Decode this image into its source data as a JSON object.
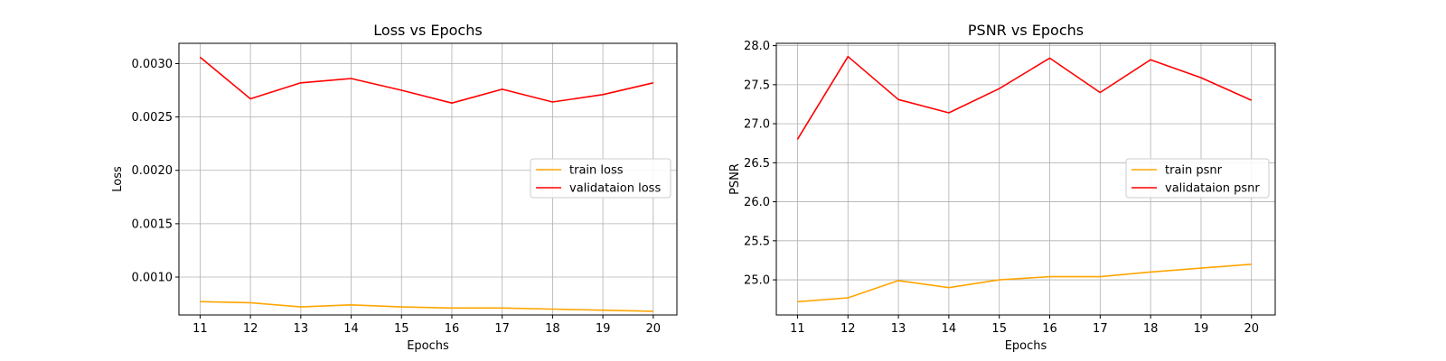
{
  "colors": {
    "train": "#ffa500",
    "validation": "#ff0000",
    "grid": "#b0b0b0",
    "axis": "#000000"
  },
  "chart_data": [
    {
      "type": "line",
      "title": "Loss vs Epochs",
      "xlabel": "Epochs",
      "ylabel": "Loss",
      "x": [
        11,
        12,
        13,
        14,
        15,
        16,
        17,
        18,
        19,
        20
      ],
      "xticks": [
        11,
        12,
        13,
        14,
        15,
        16,
        17,
        18,
        19,
        20
      ],
      "yticks": [
        "0.0010",
        "0.0015",
        "0.0020",
        "0.0025",
        "0.0030"
      ],
      "xlim": [
        10.58,
        20.47
      ],
      "ylim": [
        0.000645,
        0.00319
      ],
      "grid": true,
      "legend_position": "center-right",
      "series": [
        {
          "name": "train loss",
          "color": "#ffa500",
          "values": [
            0.00077,
            0.00076,
            0.00072,
            0.00074,
            0.00072,
            0.00071,
            0.00071,
            0.0007,
            0.00069,
            0.00068
          ]
        },
        {
          "name": "validataion loss",
          "color": "#ff0000",
          "values": [
            0.00306,
            0.00267,
            0.00282,
            0.00286,
            0.00275,
            0.00263,
            0.00276,
            0.00264,
            0.00271,
            0.00282
          ]
        }
      ]
    },
    {
      "type": "line",
      "title": "PSNR vs Epochs",
      "xlabel": "Epochs",
      "ylabel": "PSNR",
      "x": [
        11,
        12,
        13,
        14,
        15,
        16,
        17,
        18,
        19,
        20
      ],
      "xticks": [
        11,
        12,
        13,
        14,
        15,
        16,
        17,
        18,
        19,
        20
      ],
      "yticks": [
        "25.0",
        "25.5",
        "26.0",
        "26.5",
        "27.0",
        "27.5",
        "28.0"
      ],
      "xlim": [
        10.58,
        20.47
      ],
      "ylim": [
        24.55,
        28.03
      ],
      "grid": true,
      "legend_position": "center-right",
      "series": [
        {
          "name": "train psnr",
          "color": "#ffa500",
          "values": [
            24.72,
            24.77,
            24.99,
            24.9,
            25.0,
            25.04,
            25.04,
            25.1,
            25.15,
            25.2
          ]
        },
        {
          "name": "validataion psnr",
          "color": "#ff0000",
          "values": [
            26.8,
            27.86,
            27.31,
            27.14,
            27.45,
            27.84,
            27.4,
            27.82,
            27.59,
            27.3
          ]
        }
      ]
    }
  ]
}
